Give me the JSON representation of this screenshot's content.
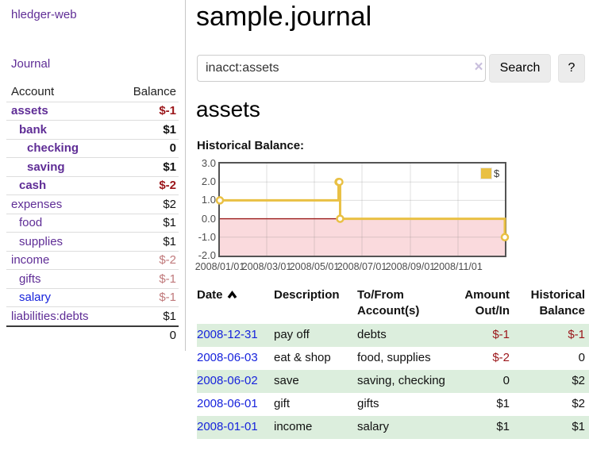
{
  "colors": {
    "link_purple": "#5f2d96",
    "link_blue": "#1723dc",
    "neg_strong": "#9b161a",
    "neg_muted": "#c0797b",
    "black": "#111111",
    "row_green": "#dceedd",
    "chart_line": "#e9c044",
    "chart_negative_fill": "#fadadd",
    "chart_zero_line": "#9b1c1c"
  },
  "sidebar": {
    "app_link": "hledger-web",
    "journal_link": "Journal",
    "accounts_table": {
      "headers": [
        "Account",
        "Balance"
      ],
      "rows": [
        {
          "name": "assets",
          "indent": 0,
          "balance": "$-1",
          "bold": true,
          "name_color": "link_purple",
          "balance_color": "neg_strong"
        },
        {
          "name": "bank",
          "indent": 1,
          "balance": "$1",
          "bold": true,
          "name_color": "link_purple",
          "balance_color": "black"
        },
        {
          "name": "checking",
          "indent": 2,
          "balance": "0",
          "bold": true,
          "name_color": "link_purple",
          "balance_color": "black"
        },
        {
          "name": "saving",
          "indent": 2,
          "balance": "$1",
          "bold": true,
          "name_color": "link_purple",
          "balance_color": "black"
        },
        {
          "name": "cash",
          "indent": 1,
          "balance": "$-2",
          "bold": true,
          "name_color": "link_purple",
          "balance_color": "neg_strong"
        },
        {
          "name": "expenses",
          "indent": 0,
          "balance": "$2",
          "bold": false,
          "name_color": "link_purple",
          "balance_color": "black"
        },
        {
          "name": "food",
          "indent": 1,
          "balance": "$1",
          "bold": false,
          "name_color": "link_purple",
          "balance_color": "black"
        },
        {
          "name": "supplies",
          "indent": 1,
          "balance": "$1",
          "bold": false,
          "name_color": "link_purple",
          "balance_color": "black"
        },
        {
          "name": "income",
          "indent": 0,
          "balance": "$-2",
          "bold": false,
          "name_color": "link_purple",
          "balance_color": "neg_muted"
        },
        {
          "name": "gifts",
          "indent": 1,
          "balance": "$-1",
          "bold": false,
          "name_color": "link_purple",
          "balance_color": "neg_muted"
        },
        {
          "name": "salary",
          "indent": 1,
          "balance": "$-1",
          "bold": false,
          "name_color": "link_blue",
          "balance_color": "neg_muted"
        },
        {
          "name": "liabilities:debts",
          "indent": 0,
          "balance": "$1",
          "bold": false,
          "name_color": "link_purple",
          "balance_color": "black"
        }
      ],
      "total": "0"
    }
  },
  "main": {
    "title": "sample.journal",
    "search": {
      "value": "inacct:assets",
      "clear_icon": "×",
      "search_button": "Search",
      "help_button": "?"
    },
    "account_heading": "assets",
    "chart_label": "Historical Balance:",
    "register_table": {
      "headers": [
        "Date",
        "Description",
        "To/From Account(s)",
        "Amount Out/In",
        "Historical Balance"
      ],
      "sort_indicator": "ascending-caret",
      "rows": [
        {
          "date": "2008-12-31",
          "description": "pay off",
          "accounts": "debts",
          "amount": "$-1",
          "balance": "$-1",
          "amount_color": "neg_strong",
          "balance_color": "neg_strong",
          "green": true
        },
        {
          "date": "2008-06-03",
          "description": "eat & shop",
          "accounts": "food, supplies",
          "amount": "$-2",
          "balance": "0",
          "amount_color": "neg_strong",
          "balance_color": "black",
          "green": false
        },
        {
          "date": "2008-06-02",
          "description": "save",
          "accounts": "saving, checking",
          "amount": "0",
          "balance": "$2",
          "amount_color": "black",
          "balance_color": "black",
          "green": true
        },
        {
          "date": "2008-06-01",
          "description": "gift",
          "accounts": "gifts",
          "amount": "$1",
          "balance": "$2",
          "amount_color": "black",
          "balance_color": "black",
          "green": false
        },
        {
          "date": "2008-01-01",
          "description": "income",
          "accounts": "salary",
          "amount": "$1",
          "balance": "$1",
          "amount_color": "black",
          "balance_color": "black",
          "green": true
        }
      ]
    }
  },
  "chart_data": {
    "type": "line",
    "title": "Historical Balance",
    "step": true,
    "series": [
      {
        "name": "$",
        "color": "#e9c044",
        "points": [
          [
            "2008-01-01",
            1
          ],
          [
            "2008-06-01",
            2
          ],
          [
            "2008-06-02",
            2
          ],
          [
            "2008-06-03",
            0
          ],
          [
            "2008-12-31",
            -1
          ]
        ]
      }
    ],
    "x_range": [
      "2008-01-01",
      "2008-12-31"
    ],
    "ylim": [
      -2,
      3
    ],
    "y_ticks": [
      "3.0",
      "2.0",
      "1.0",
      "0.0",
      "-1.0",
      "-2.0"
    ],
    "x_tick_labels": [
      "2008/01/01",
      "2008/03/01",
      "2008/05/01",
      "2008/07/01",
      "2008/09/01",
      "2008/11/01"
    ],
    "grid": true,
    "negative_region_shaded": true,
    "legend": {
      "label": "$",
      "position": "top-right"
    }
  }
}
